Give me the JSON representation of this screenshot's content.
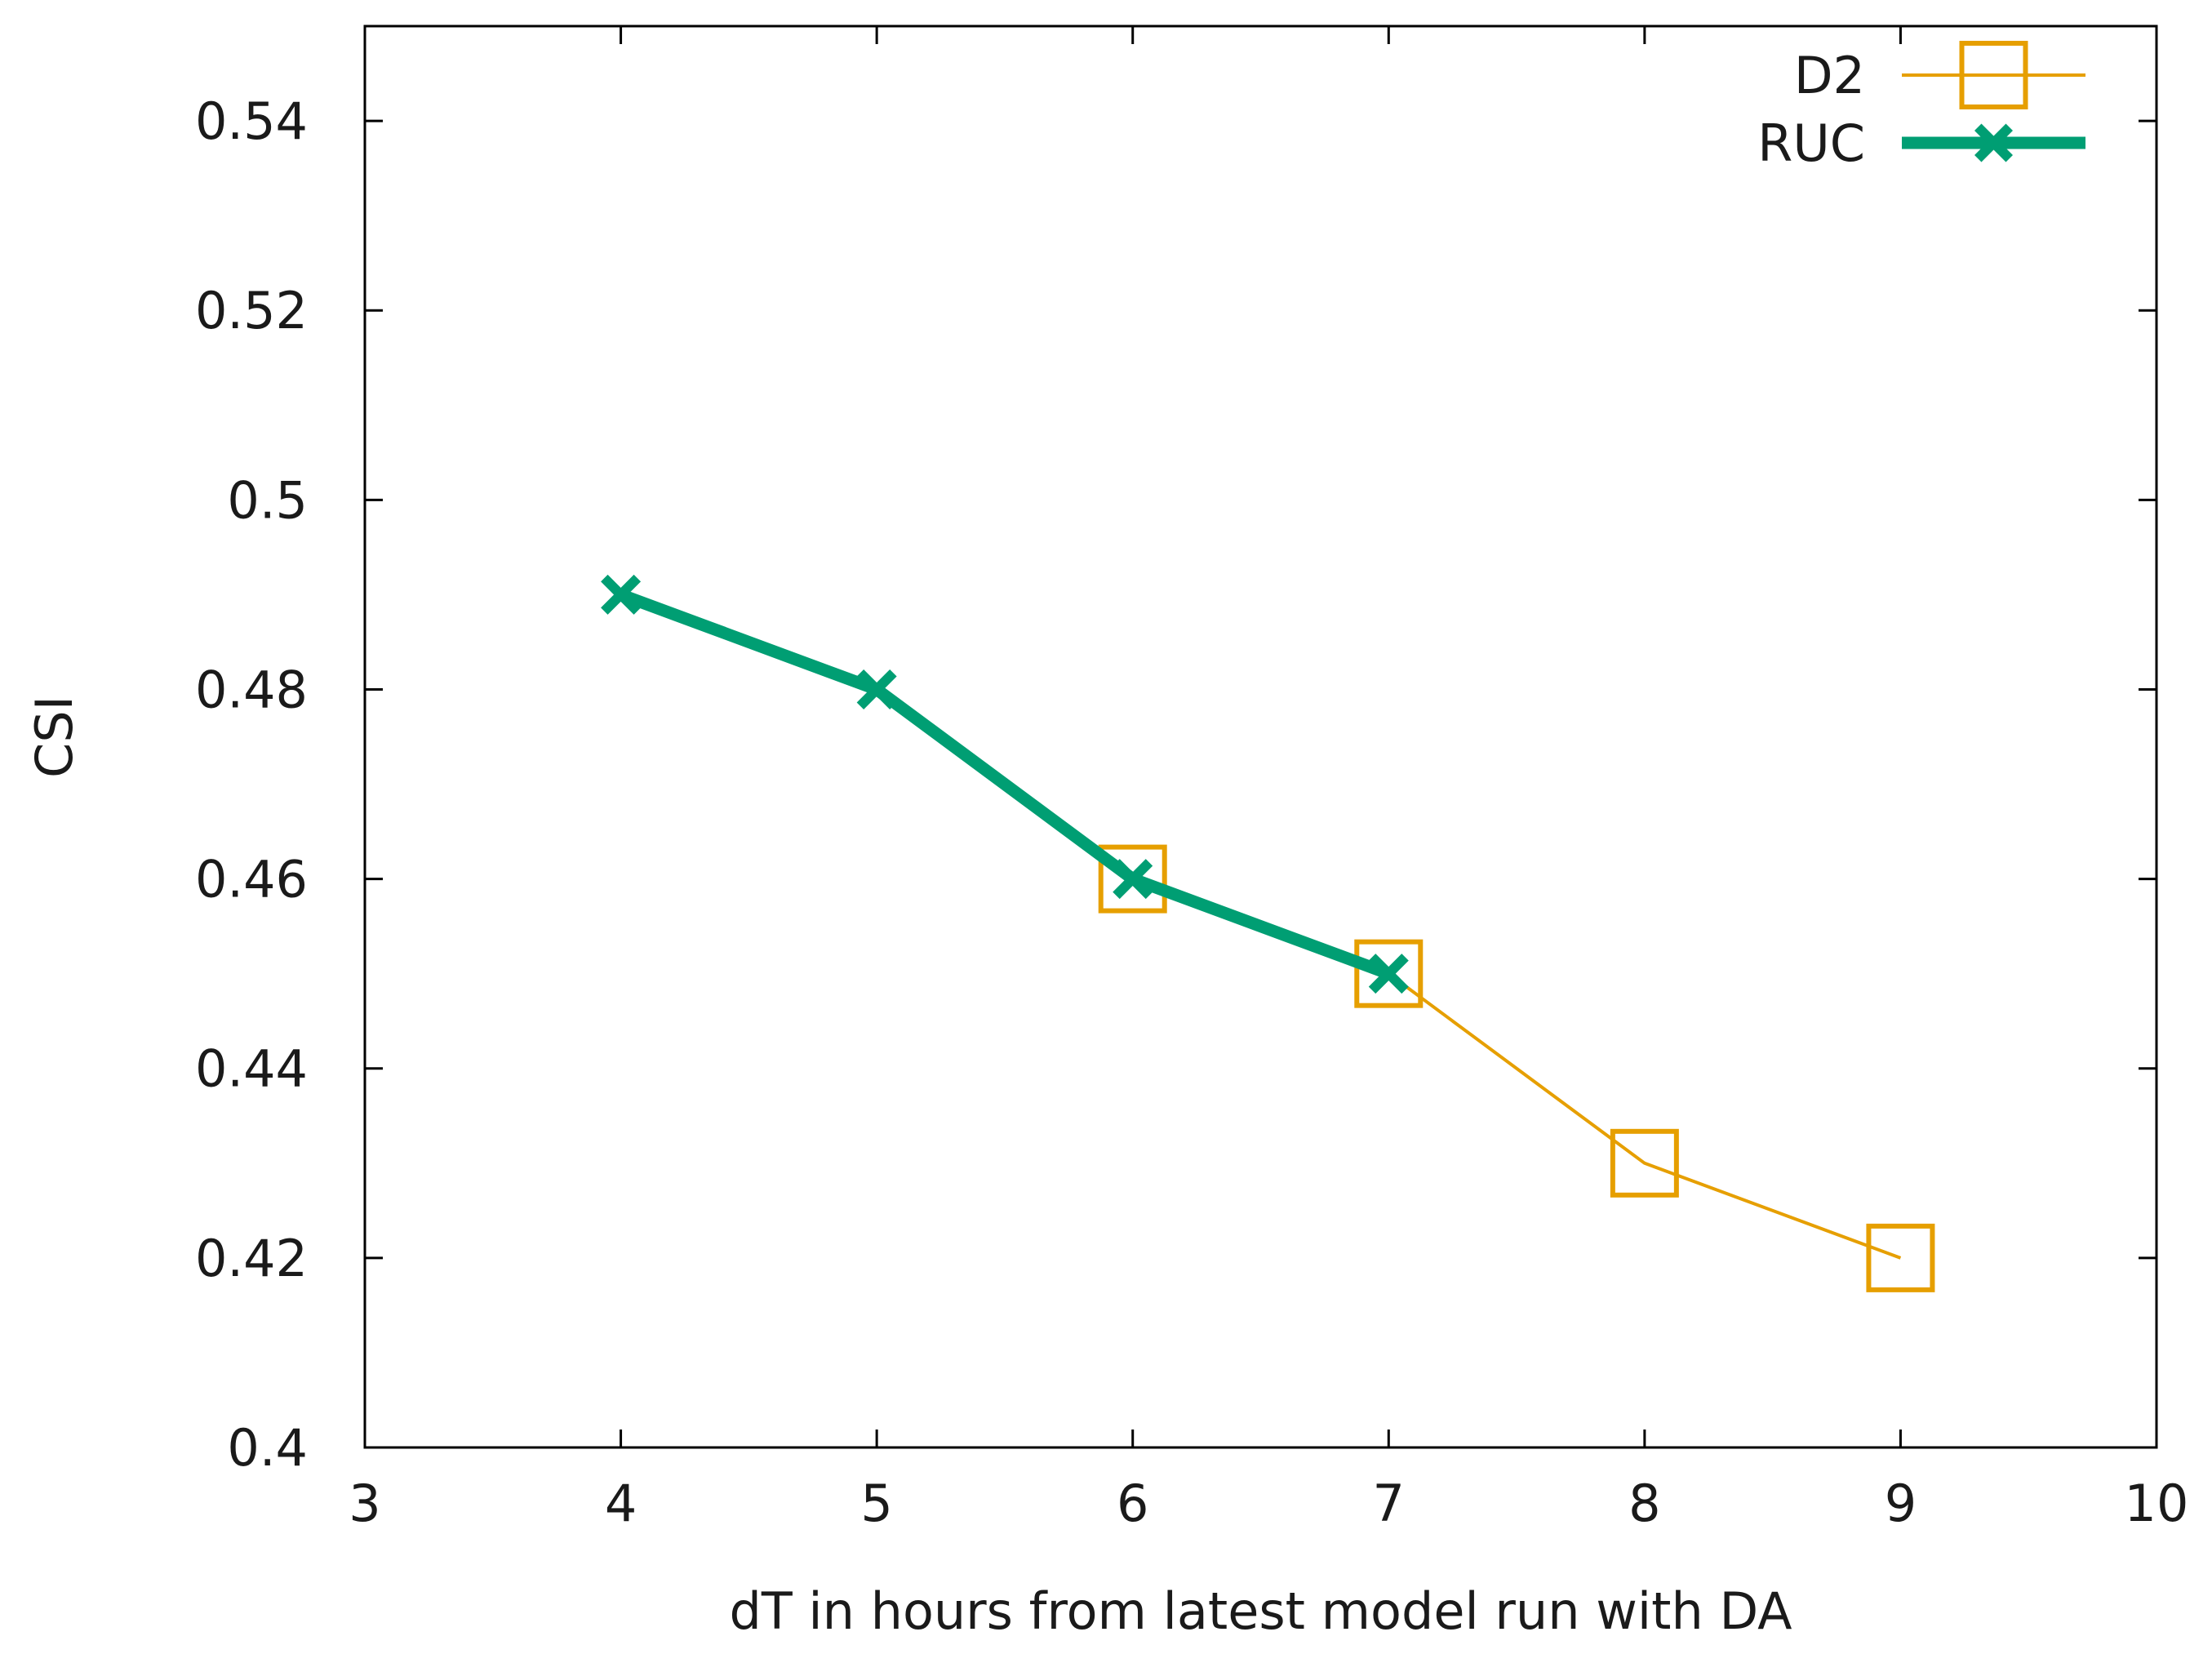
{
  "chart_data": {
    "type": "line",
    "title": "",
    "xlabel": "dT in hours from latest model run with DA",
    "ylabel": "CSI",
    "xlim": [
      3,
      10
    ],
    "ylim": [
      0.4,
      0.55
    ],
    "xticks": [
      3,
      4,
      5,
      6,
      7,
      8,
      9,
      10
    ],
    "xtick_labels": [
      "3",
      "4",
      "5",
      "6",
      "7",
      "8",
      "9",
      "10"
    ],
    "yticks": [
      0.4,
      0.42,
      0.44,
      0.46,
      0.48,
      0.5,
      0.52,
      0.54
    ],
    "ytick_labels": [
      "0.4",
      "0.42",
      "0.44",
      "0.46",
      "0.48",
      "0.5",
      "0.52",
      "0.54"
    ],
    "grid": false,
    "legend_position": "top-right",
    "series": [
      {
        "name": "D2",
        "color": "#e69f00",
        "marker": "open-square",
        "line": "thin",
        "x": [
          6,
          7,
          8,
          9
        ],
        "y": [
          0.46,
          0.45,
          0.43,
          0.42
        ]
      },
      {
        "name": "RUC",
        "color": "#009e73",
        "marker": "cross",
        "line": "thick",
        "x": [
          4,
          5,
          6,
          7
        ],
        "y": [
          0.49,
          0.48,
          0.46,
          0.45
        ]
      }
    ]
  }
}
